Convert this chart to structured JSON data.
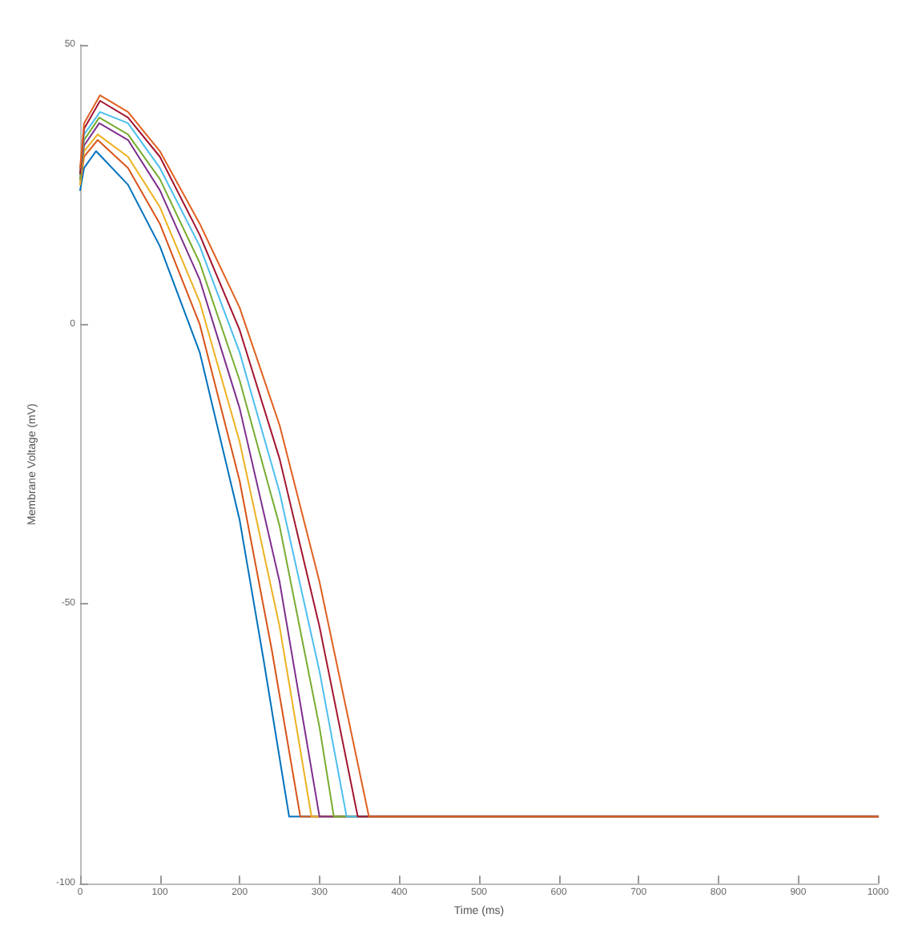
{
  "chart_data": {
    "type": "line",
    "xlabel": "Time (ms)",
    "ylabel": "Membrane Voltage (mV)",
    "xlim": [
      0,
      1000
    ],
    "xticks": [
      0,
      100,
      200,
      300,
      400,
      500,
      600,
      700,
      800,
      900,
      1000
    ],
    "ylim": [
      -100,
      50
    ],
    "yticks": [
      -100,
      -50,
      0,
      50
    ],
    "grid": false,
    "marker": "none",
    "line_style": "solid",
    "series": [
      {
        "color": "#0072bd",
        "x": [
          0,
          5,
          20,
          60,
          100,
          150,
          200,
          230,
          262,
          1000
        ],
        "values": [
          24,
          28,
          31,
          25,
          14,
          -5,
          -35,
          -60,
          -88,
          -88
        ]
      },
      {
        "color": "#d95319",
        "x": [
          0,
          5,
          22,
          60,
          100,
          150,
          200,
          240,
          276,
          1000
        ],
        "values": [
          25,
          30,
          33,
          28,
          18,
          0,
          -28,
          -58,
          -88,
          -88
        ]
      },
      {
        "color": "#edb120",
        "x": [
          0,
          5,
          22,
          60,
          100,
          150,
          200,
          250,
          290,
          1000
        ],
        "values": [
          25,
          31,
          34,
          30,
          21,
          4,
          -21,
          -54,
          -88,
          -88
        ]
      },
      {
        "color": "#7e2f8e",
        "x": [
          0,
          5,
          24,
          60,
          100,
          150,
          200,
          250,
          300,
          1000
        ],
        "values": [
          26,
          32,
          36,
          33,
          24,
          8,
          -15,
          -46,
          -88,
          -88
        ]
      },
      {
        "color": "#77ac30",
        "x": [
          0,
          5,
          24,
          60,
          100,
          150,
          200,
          250,
          300,
          318,
          1000
        ],
        "values": [
          26,
          33,
          37,
          34,
          26,
          11,
          -10,
          -36,
          -72,
          -88,
          -88
        ]
      },
      {
        "color": "#4dbeee",
        "x": [
          0,
          5,
          25,
          60,
          100,
          150,
          200,
          250,
          300,
          334,
          1000
        ],
        "values": [
          27,
          34,
          38,
          36,
          28,
          14,
          -5,
          -30,
          -62,
          -88,
          -88
        ]
      },
      {
        "color": "#a2142f",
        "x": [
          0,
          5,
          25,
          60,
          100,
          150,
          200,
          250,
          300,
          348,
          1000
        ],
        "values": [
          27,
          35,
          40,
          37,
          30,
          16,
          -1,
          -24,
          -54,
          -88,
          -88
        ]
      },
      {
        "color": "#e06020",
        "x": [
          0,
          5,
          25,
          60,
          100,
          150,
          200,
          250,
          300,
          362,
          1000
        ],
        "values": [
          28,
          36,
          41,
          38,
          31,
          18,
          3,
          -18,
          -46,
          -88,
          -88
        ]
      }
    ]
  }
}
